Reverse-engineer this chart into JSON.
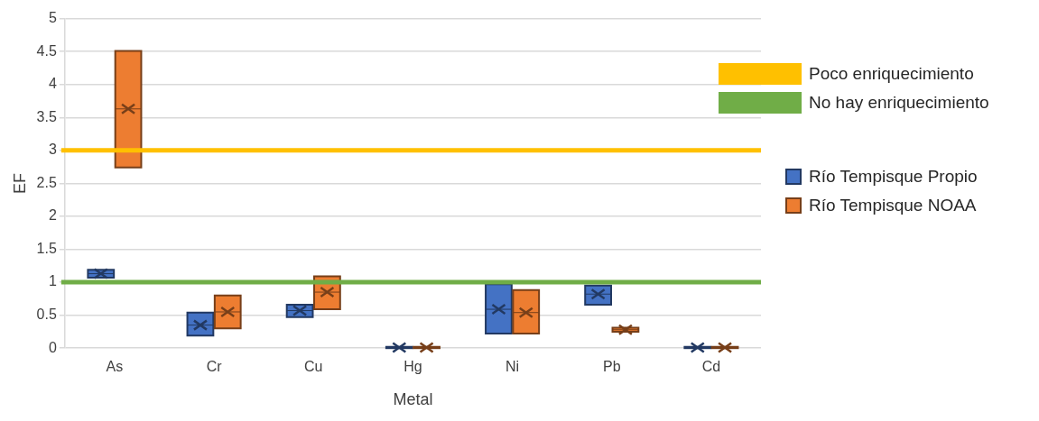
{
  "chart_data": {
    "type": "box",
    "xlabel": "Metal",
    "ylabel": "EF",
    "categories": [
      "As",
      "Cr",
      "Cu",
      "Hg",
      "Ni",
      "Pb",
      "Cd"
    ],
    "series": [
      {
        "name": "Río Tempisque Propio",
        "color": "#4472c4",
        "boxes": [
          {
            "low": 1.07,
            "q1": 1.07,
            "median": 1.13,
            "q3": 1.19,
            "high": 1.19,
            "mean": 1.13
          },
          {
            "low": 0.19,
            "q1": 0.19,
            "median": 0.35,
            "q3": 0.54,
            "high": 0.54,
            "mean": 0.35
          },
          {
            "low": 0.47,
            "q1": 0.47,
            "median": 0.57,
            "q3": 0.66,
            "high": 0.66,
            "mean": 0.57
          },
          {
            "low": 0,
            "q1": 0,
            "median": 0.01,
            "q3": 0.02,
            "high": 0.02,
            "mean": 0.01
          },
          {
            "low": 0.22,
            "q1": 0.22,
            "median": 0.59,
            "q3": 0.97,
            "high": 0.97,
            "mean": 0.59
          },
          {
            "low": 0.66,
            "q1": 0.66,
            "median": 0.82,
            "q3": 0.95,
            "high": 0.95,
            "mean": 0.82
          },
          {
            "low": 0,
            "q1": 0,
            "median": 0.01,
            "q3": 0.02,
            "high": 0.02,
            "mean": 0.01
          }
        ]
      },
      {
        "name": "Río Tempisque NOAA",
        "color": "#ed7d31",
        "boxes": [
          {
            "low": 2.74,
            "q1": 2.74,
            "median": 3.63,
            "q3": 4.51,
            "high": 4.51,
            "mean": 3.63
          },
          {
            "low": 0.3,
            "q1": 0.3,
            "median": 0.55,
            "q3": 0.8,
            "high": 0.8,
            "mean": 0.55
          },
          {
            "low": 0.59,
            "q1": 0.59,
            "median": 0.85,
            "q3": 1.09,
            "high": 1.09,
            "mean": 0.85
          },
          {
            "low": 0,
            "q1": 0,
            "median": 0.01,
            "q3": 0.02,
            "high": 0.02,
            "mean": 0.01
          },
          {
            "low": 0.22,
            "q1": 0.22,
            "median": 0.54,
            "q3": 0.88,
            "high": 0.88,
            "mean": 0.54
          },
          {
            "low": 0.25,
            "q1": 0.25,
            "median": 0.28,
            "q3": 0.31,
            "high": 0.31,
            "mean": 0.28
          },
          {
            "low": 0,
            "q1": 0,
            "median": 0.01,
            "q3": 0.02,
            "high": 0.02,
            "mean": 0.01
          }
        ]
      }
    ],
    "ref_lines": [
      {
        "axis": "y",
        "value": 3,
        "label": "Poco enriquecimiento",
        "color": "#ffc000"
      },
      {
        "axis": "y",
        "value": 1,
        "label": "No hay enriquecimiento",
        "color": "#70ad47"
      }
    ],
    "ylim": [
      0,
      5
    ],
    "yticks": [
      0,
      0.5,
      1,
      1.5,
      2,
      2.5,
      3,
      3.5,
      4,
      4.5,
      5
    ],
    "grid": "y",
    "legend": "right"
  }
}
